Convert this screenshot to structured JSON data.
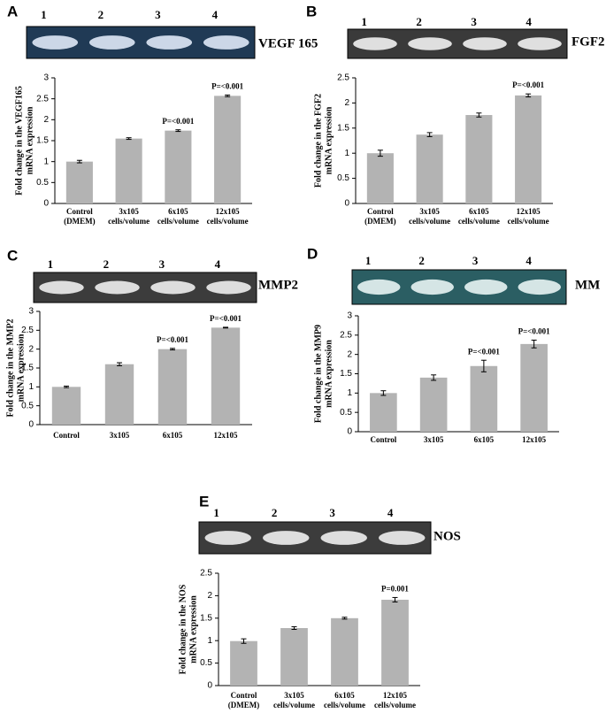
{
  "chart_data": [
    {
      "type": "bar",
      "panel": "A",
      "gel_lanes": [
        "1",
        "2",
        "3",
        "4"
      ],
      "gel_label": "VEGF 165",
      "ylabel": [
        "Fold change in the VEGF165",
        "mRNA expression"
      ],
      "categories": [
        [
          "Control",
          "(DMEM)"
        ],
        [
          "3x105",
          "cells/volume"
        ],
        [
          "6x105",
          "cells/volume"
        ],
        [
          "12x105",
          "cells/volume"
        ]
      ],
      "values": [
        1,
        1.55,
        1.74,
        2.57
      ],
      "errors": [
        0.03,
        0.02,
        0.02,
        0.02
      ],
      "annotations": [
        null,
        null,
        "P=<0.001",
        "P=<0.001"
      ],
      "color": "#b3b3b3",
      "ylim": [
        0,
        3
      ],
      "yticks": [
        0,
        0.5,
        1,
        1.5,
        2,
        2.5,
        3
      ]
    },
    {
      "type": "bar",
      "panel": "B",
      "gel_lanes": [
        "1",
        "2",
        "3",
        "4"
      ],
      "gel_label": "FGF2",
      "ylabel": [
        "Fold change in the FGF2",
        "mRNA expression"
      ],
      "categories": [
        [
          "Control",
          "(DMEM)"
        ],
        [
          "3x105",
          "cells/volume"
        ],
        [
          "6x105",
          "cells/volume"
        ],
        [
          "12x105",
          "cells/volume"
        ]
      ],
      "values": [
        1,
        1.37,
        1.76,
        2.15
      ],
      "errors": [
        0.06,
        0.04,
        0.04,
        0.03
      ],
      "annotations": [
        null,
        null,
        null,
        "P=<0.001"
      ],
      "color": "#b3b3b3",
      "ylim": [
        0,
        2.5
      ],
      "yticks": [
        0,
        0.5,
        1,
        1.5,
        2,
        2.5
      ]
    },
    {
      "type": "bar",
      "panel": "C",
      "gel_lanes": [
        "1",
        "2",
        "3",
        "4"
      ],
      "gel_label": "MMP2",
      "ylabel": [
        "Fold change in the MMP2",
        "mRNA expression"
      ],
      "categories": [
        [
          "Control"
        ],
        [
          "3x105"
        ],
        [
          "6x105"
        ],
        [
          "12x105"
        ]
      ],
      "values": [
        1,
        1.6,
        2.0,
        2.57
      ],
      "errors": [
        0.02,
        0.04,
        0.02,
        0.01
      ],
      "annotations": [
        null,
        null,
        "P=<0.001",
        "P=<0.001"
      ],
      "color": "#b3b3b3",
      "ylim": [
        0,
        3
      ],
      "yticks": [
        0,
        0.5,
        1,
        1.5,
        2,
        2.5,
        3
      ]
    },
    {
      "type": "bar",
      "panel": "D",
      "gel_lanes": [
        "1",
        "2",
        "3",
        "4"
      ],
      "gel_label": "MM",
      "ylabel": [
        "Fold change in the MMP9",
        "mRNA expression"
      ],
      "categories": [
        [
          "Control"
        ],
        [
          "3x105"
        ],
        [
          "6x105"
        ],
        [
          "12x105"
        ]
      ],
      "values": [
        1,
        1.4,
        1.7,
        2.27
      ],
      "errors": [
        0.06,
        0.07,
        0.15,
        0.1
      ],
      "annotations": [
        null,
        null,
        "P=<0.001",
        "P=<0.001"
      ],
      "color": "#b3b3b3",
      "ylim": [
        0,
        3
      ],
      "yticks": [
        0,
        0.5,
        1,
        1.5,
        2,
        2.5,
        3
      ]
    },
    {
      "type": "bar",
      "panel": "E",
      "gel_lanes": [
        "1",
        "2",
        "3",
        "4"
      ],
      "gel_label": "NOS",
      "ylabel": [
        "Fold change in the NOS",
        "mRNA expression"
      ],
      "categories": [
        [
          "Control",
          "(DMEM)"
        ],
        [
          "3x105",
          "cells/volume"
        ],
        [
          "6x105",
          "cells/volume"
        ],
        [
          "12x105",
          "cells/volume"
        ]
      ],
      "values": [
        0.99,
        1.28,
        1.5,
        1.91
      ],
      "errors": [
        0.05,
        0.03,
        0.02,
        0.05
      ],
      "annotations": [
        null,
        null,
        null,
        "P=0.001"
      ],
      "color": "#b3b3b3",
      "ylim": [
        0,
        2.5
      ],
      "yticks": [
        0,
        0.5,
        1,
        1.5,
        2,
        2.5
      ]
    }
  ]
}
